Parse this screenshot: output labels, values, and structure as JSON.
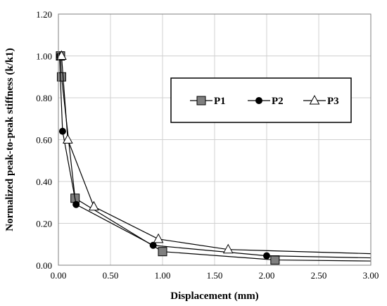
{
  "chart_data": {
    "type": "line",
    "title": "",
    "xlabel": "Displacement  (mm)",
    "ylabel": "Normalized  peak-to-peak stiffness  (k/k1)",
    "xlim": [
      0,
      3.0
    ],
    "ylim": [
      0,
      1.2
    ],
    "x_ticks": [
      "0.00",
      "0.50",
      "1.00",
      "1.50",
      "2.00",
      "2.50",
      "3.00"
    ],
    "y_ticks": [
      "0.00",
      "0.20",
      "0.40",
      "0.60",
      "0.80",
      "1.00",
      "1.20"
    ],
    "grid": true,
    "legend_position": "upper-right inside plot",
    "series": [
      {
        "name": "P1",
        "marker": "square",
        "color": "#7f7f7f",
        "points": [
          [
            0.02,
            1.0
          ],
          [
            0.03,
            0.9
          ],
          [
            0.16,
            0.32
          ],
          [
            1.0,
            0.065
          ],
          [
            2.08,
            0.025
          ],
          [
            3.0,
            0.02
          ]
        ]
      },
      {
        "name": "P2",
        "marker": "circle",
        "color": "#000000",
        "points": [
          [
            0.01,
            1.0
          ],
          [
            0.04,
            0.64
          ],
          [
            0.17,
            0.29
          ],
          [
            0.91,
            0.095
          ],
          [
            2.0,
            0.045
          ],
          [
            3.0,
            0.035
          ]
        ]
      },
      {
        "name": "P3",
        "marker": "triangle",
        "color": "#ffffff",
        "points": [
          [
            0.03,
            1.0
          ],
          [
            0.09,
            0.6
          ],
          [
            0.34,
            0.28
          ],
          [
            0.96,
            0.125
          ],
          [
            1.63,
            0.075
          ],
          [
            3.0,
            0.055
          ]
        ]
      }
    ]
  }
}
